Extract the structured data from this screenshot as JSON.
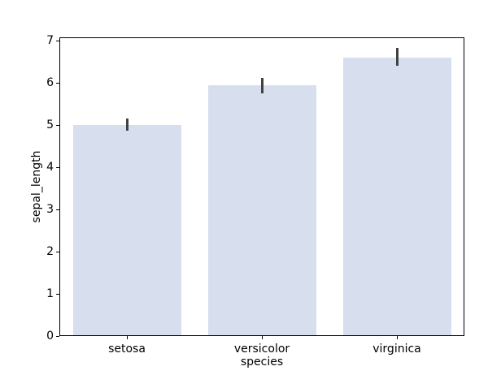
{
  "chart_data": {
    "type": "bar",
    "title": "",
    "xlabel": "species",
    "ylabel": "sepal_length",
    "categories": [
      "setosa",
      "versicolor",
      "virginica"
    ],
    "values": [
      5.01,
      5.94,
      6.59
    ],
    "error_bars": {
      "type": "ci",
      "low": [
        4.87,
        5.76,
        6.4
      ],
      "high": [
        5.15,
        6.12,
        6.83
      ]
    },
    "ylim": [
      0,
      7.08
    ],
    "yticks": [
      0,
      1,
      2,
      3,
      4,
      5,
      6,
      7
    ],
    "grid": false,
    "legend": "none",
    "colors": {
      "bar_fill": "#d7dfee",
      "error_bar": "#424242",
      "spine": "#000000",
      "text": "#000000",
      "background": "#ffffff"
    }
  }
}
